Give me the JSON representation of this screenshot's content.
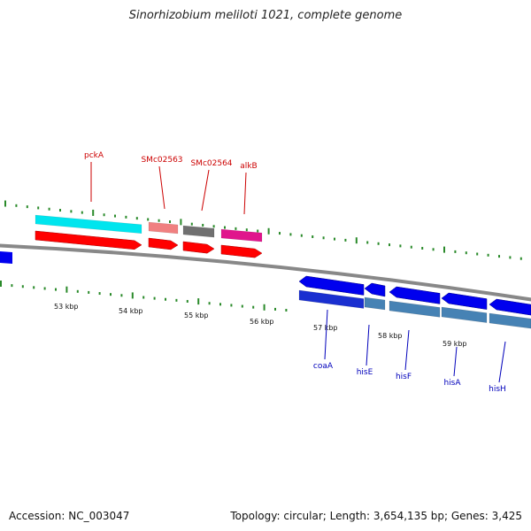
{
  "title": "Sinorhizobium meliloti 1021, complete genome",
  "footer": {
    "accession": "Accession: NC_003047",
    "summary": "Topology: circular; Length: 3,654,135 bp; Genes: 3,425"
  },
  "colors": {
    "backbone": "#888888",
    "tick": "#2a8a2a",
    "forward_label": "#cc0000",
    "reverse_label": "#0000bb"
  },
  "scale_labels": [
    "53 kbp",
    "54 kbp",
    "55 kbp",
    "56 kbp",
    "57 kbp",
    "58 kbp",
    "59 kbp"
  ],
  "forward_genes": [
    {
      "name": "pckA",
      "color": "#00e5ee"
    },
    {
      "name": "SMc02563",
      "color": "#f08080"
    },
    {
      "name": "SMc02564",
      "color": "#707070"
    },
    {
      "name": "alkB",
      "color": "#e0158c"
    }
  ],
  "reverse_genes": [
    {
      "name": "coaA",
      "color": "#4682b4"
    },
    {
      "name": "hisE",
      "color": "#4682b4"
    },
    {
      "name": "hisF",
      "color": "#4682b4"
    },
    {
      "name": "hisA",
      "color": "#4682b4"
    },
    {
      "name": "hisH",
      "color": "#4682b4"
    }
  ]
}
